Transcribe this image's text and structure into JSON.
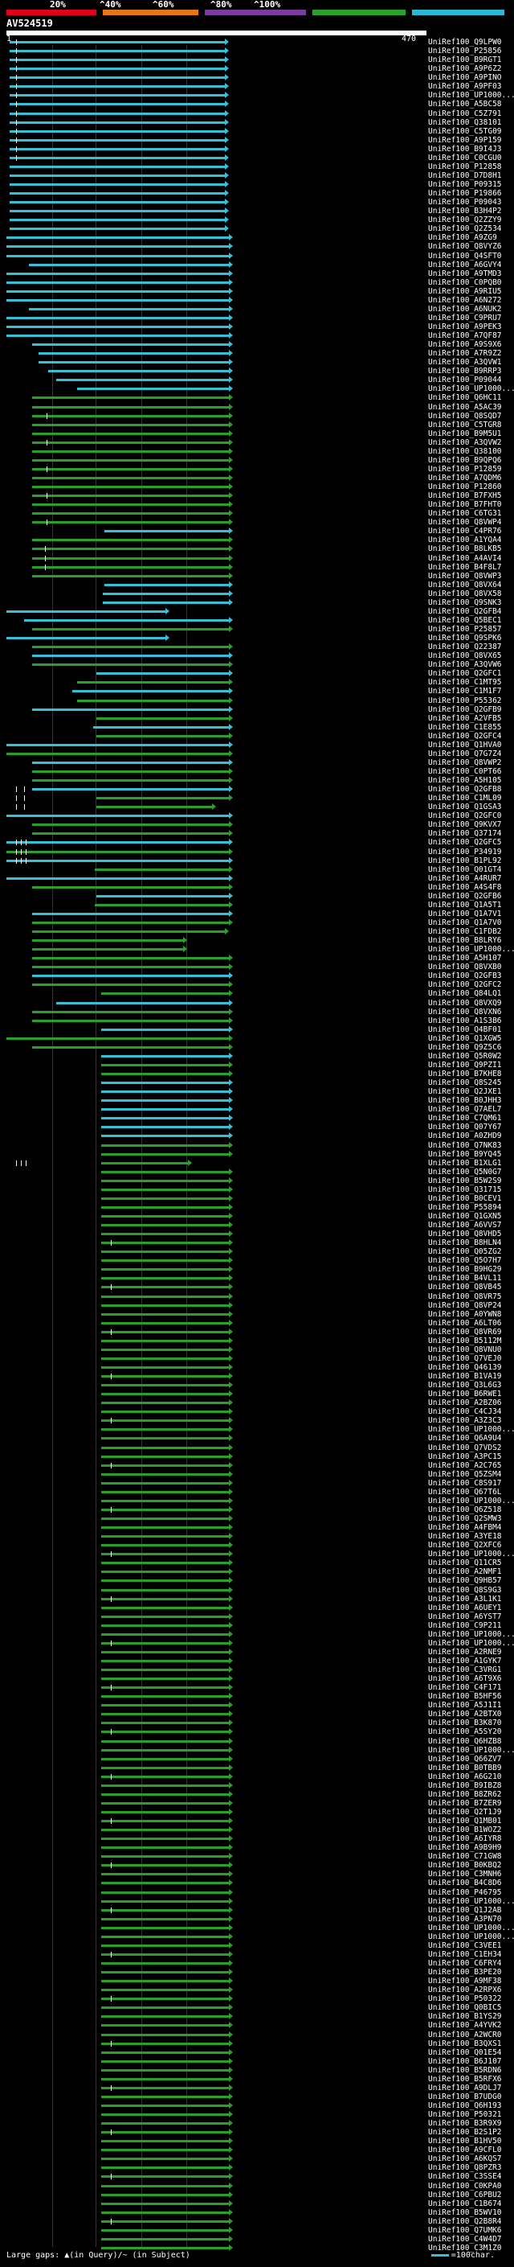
{
  "scale": {
    "labels": [
      "20%",
      "^40%",
      "^60%",
      "^80%",
      "^100%"
    ],
    "colors": [
      "#e2001a",
      "#e3761a",
      "#7a3d9a",
      "#2ca02c",
      "#28b8d6"
    ]
  },
  "query": {
    "title": "AV524519",
    "start": "1",
    "end": "470"
  },
  "legend": {
    "text": "Large gaps: ▲(in Query)/~ (in Subject)",
    "key_label": "=100char."
  },
  "colors": {
    "hit_cyan": "#36c0d8",
    "hit_green": "#2aa02a",
    "tick": "#ffffff"
  },
  "hits": [
    "UniRef100_Q9LPW0",
    "UniRef100_P25856",
    "UniRef100_B9RGT1",
    "UniRef100_A9P6Z2",
    "UniRef100_A9PINO",
    "UniRef100_A9PF03",
    "UniRef100_UP1000...",
    "UniRef100_A5BC58",
    "UniRef100_C5Z791",
    "UniRef100_Q38101",
    "UniRef100_C5TG09",
    "UniRef100_A9P159",
    "UniRef100_B9I4J3",
    "UniRef100_C0CGU0",
    "UniRef100_P12858",
    "UniRef100_D7D8H1",
    "UniRef100_P09315",
    "UniRef100_P19866",
    "UniRef100_P09043",
    "UniRef100_B3H4P2",
    "UniRef100_Q2ZZY9",
    "UniRef100_Q2Z534",
    "UniRef100_A9ZG9",
    "UniRef100_Q8VYZ6",
    "UniRef100_Q4SFT0",
    "UniRef100_A6GVY4",
    "UniRef100_A9TMD3",
    "UniRef100_C0PQB0",
    "UniRef100_A9RIU5",
    "UniRef100_A6N272",
    "UniRef100_A6NUK2",
    "UniRef100_C9PRU7",
    "UniRef100_A9PEK3",
    "UniRef100_A7QF87",
    "UniRef100_A9S9X6",
    "UniRef100_A7R9Z2",
    "UniRef100_A3QVW1",
    "UniRef100_B9RRP3",
    "UniRef100_P09044",
    "UniRef100_UP1000...",
    "UniRef100_Q6HC11",
    "UniRef100_A5AC39",
    "UniRef100_Q8SQD7",
    "UniRef100_C5TGR8",
    "UniRef100_B9M5U1",
    "UniRef100_A3QVW2",
    "UniRef100_Q38100",
    "UniRef100_B9QPQ6",
    "UniRef100_P12859",
    "UniRef100_A7QDM6",
    "UniRef100_P12860",
    "UniRef100_B7FXH5",
    "UniRef100_B7FHT0",
    "UniRef100_C6TG31",
    "UniRef100_Q8VWP4",
    "UniRef100_C4PR76",
    "UniRef100_A1YQA4",
    "UniRef100_B8LKB5",
    "UniRef100_A4AVI4",
    "UniRef100_B4F8L7",
    "UniRef100_Q8VWP3",
    "UniRef100_Q8VX64",
    "UniRef100_Q8VX58",
    "UniRef100_Q9SNK3",
    "UniRef100_Q2GFB4",
    "UniRef100_Q5BEC1",
    "UniRef100_P25857",
    "UniRef100_Q9SPK6",
    "UniRef100_Q22387",
    "UniRef100_Q8VX65",
    "UniRef100_A3QVW6",
    "UniRef100_Q2GFC1",
    "UniRef100_C1MT95",
    "UniRef100_C1M1F7",
    "UniRef100_P55362",
    "UniRef100_Q2GFB9",
    "UniRef100_A2VFB5",
    "UniRef100_C1E855",
    "UniRef100_Q2GFC4",
    "UniRef100_Q1HVA0",
    "UniRef100_Q7G7Z4",
    "UniRef100_Q8VWP2",
    "UniRef100_C0PT66",
    "UniRef100_A5H105",
    "UniRef100_Q2GFB8",
    "UniRef100_C1ML09",
    "UniRef100_Q1GSA3",
    "UniRef100_Q2GFC0",
    "UniRef100_Q9KVX7",
    "UniRef100_Q37174",
    "UniRef100_Q2GFC5",
    "UniRef100_P34919",
    "UniRef100_B1PL92",
    "UniRef100_Q01GT4",
    "UniRef100_A4RUR7",
    "UniRef100_A4S4F8",
    "UniRef100_Q2GFB6",
    "UniRef100_Q1A5T1",
    "UniRef100_Q1A7V1",
    "UniRef100_Q1A7V0",
    "UniRef100_C1FDB2",
    "UniRef100_B8LRY6",
    "UniRef100_UP1000...",
    "UniRef100_A5H107",
    "UniRef100_Q8VXB0",
    "UniRef100_Q2GFB3",
    "UniRef100_Q2GFC2",
    "UniRef100_Q84LQ1",
    "UniRef100_Q8VXQ9",
    "UniRef100_Q8VXN6",
    "UniRef100_A1S3B6",
    "UniRef100_Q4BF01",
    "UniRef100_Q1XGW5",
    "UniRef100_Q9Z5C6",
    "UniRef100_Q5R0W2",
    "UniRef100_Q9PZI1",
    "UniRef100_B7KHE8",
    "UniRef100_Q8S245",
    "UniRef100_Q2JXE1",
    "UniRef100_B0JHH3",
    "UniRef100_Q7AEL7",
    "UniRef100_C7QM61",
    "UniRef100_Q07Y67",
    "UniRef100_A0ZHD9",
    "UniRef100_Q7NK83",
    "UniRef100_B9YQ45",
    "UniRef100_B1XLG1",
    "UniRef100_Q5N0G7",
    "UniRef100_B5W2S9",
    "UniRef100_Q31715",
    "UniRef100_B0CEV1",
    "UniRef100_P55894",
    "UniRef100_Q1GXN5",
    "UniRef100_A6VVS7",
    "UniRef100_Q8VHD5",
    "UniRef100_B8HLN4",
    "UniRef100_Q05ZG2",
    "UniRef100_Q5O7H7",
    "UniRef100_B9HG29",
    "UniRef100_B4VL11",
    "UniRef100_Q8VB45",
    "UniRef100_Q8VR75",
    "UniRef100_Q8VP24",
    "UniRef100_A0YWN8",
    "UniRef100_A6LT06",
    "UniRef100_Q8VR69",
    "UniRef100_B5112M",
    "UniRef100_Q8VNU0",
    "UniRef100_Q7VEJ0",
    "UniRef100_Q46139",
    "UniRef100_B1VA19",
    "UniRef100_Q3L6G3",
    "UniRef100_B6RWE1",
    "UniRef100_A2BZ06",
    "UniRef100_C4CJ34",
    "UniRef100_A3Z3C3",
    "UniRef100_UP1000...",
    "UniRef100_Q6A9U4",
    "UniRef100_Q7VDS2",
    "UniRef100_A3PC15",
    "UniRef100_A2C765",
    "UniRef100_Q5ZSM4",
    "UniRef100_C8S917",
    "UniRef100_Q67T6L",
    "UniRef100_UP1000...",
    "UniRef100_Q6Z518",
    "UniRef100_Q2SMW3",
    "UniRef100_A4FBM4",
    "UniRef100_A3YE18",
    "UniRef100_Q2XFC6",
    "UniRef100_UP1000...",
    "UniRef100_Q11CR5",
    "UniRef100_A2NMF1",
    "UniRef100_Q9HB57",
    "UniRef100_Q8S9G3",
    "UniRef100_A3L1K1",
    "UniRef100_A6UEY1",
    "UniRef100_A6YST7",
    "UniRef100_C9P211",
    "UniRef100_UP1000...",
    "UniRef100_UP1000...",
    "UniRef100_A2RNE9",
    "UniRef100_A1GYK7",
    "UniRef100_C3VRG1",
    "UniRef100_A6T9X6",
    "UniRef100_C4F171",
    "UniRef100_B5HF56",
    "UniRef100_A5J1I1",
    "UniRef100_A2BTX0",
    "UniRef100_B3K870",
    "UniRef100_A5SY20",
    "UniRef100_Q6HZB8",
    "UniRef100_UP1000...",
    "UniRef100_Q66ZV7",
    "UniRef100_B0TBB9",
    "UniRef100_A6G210",
    "UniRef100_B9IBZ8",
    "UniRef100_B8ZR62",
    "UniRef100_B7ZER9",
    "UniRef100_Q2T1J9",
    "UniRef100_Q1MB01",
    "UniRef100_B1WOZ2",
    "UniRef100_A6IYR8",
    "UniRef100_A9B9H9",
    "UniRef100_C71GW8",
    "UniRef100_B0KBQ2",
    "UniRef100_C3MNH6",
    "UniRef100_B4C8D6",
    "UniRef100_P46795",
    "UniRef100_UP1000...",
    "UniRef100_Q1J2AB",
    "UniRef100_A3PN70",
    "UniRef100_UP1000...",
    "UniRef100_UP1000...",
    "UniRef100_C3VEE1",
    "UniRef100_C1EH34",
    "UniRef100_C6FRY4",
    "UniRef100_B3PE20",
    "UniRef100_A9MF38",
    "UniRef100_A2RPX6",
    "UniRef100_P50322",
    "UniRef100_Q0BIC5",
    "UniRef100_B1YS29",
    "UniRef100_A4YVK2",
    "UniRef100_A2WCR0",
    "UniRef100_B3QXS1",
    "UniRef100_Q01E54",
    "UniRef100_B6J107",
    "UniRef100_B5RDN6",
    "UniRef100_B5RFX6",
    "UniRef100_A9DLJ7",
    "UniRef100_B7UDG0",
    "UniRef100_Q6H193",
    "UniRef100_P50321",
    "UniRef100_B3R9X9",
    "UniRef100_B2S1P2",
    "UniRef100_B1HV50",
    "UniRef100_A9CFL0",
    "UniRef100_A6KQS7",
    "UniRef100_Q8PZR3",
    "UniRef100_C3SSE4",
    "UniRef100_C0KPA0",
    "UniRef100_C6PBU2",
    "UniRef100_C1B674",
    "UniRef100_B5WV10",
    "UniRef100_Q2B8R4",
    "UniRef100_Q7UMK6",
    "UniRef100_C4W4D7",
    "UniRef100_C3M1Z0"
  ]
}
